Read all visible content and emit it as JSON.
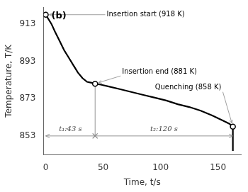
{
  "chart_data": {
    "type": "line",
    "x": [
      0,
      2,
      5,
      8,
      12,
      16,
      20,
      24,
      28,
      32,
      36,
      40,
      43,
      48,
      55,
      65,
      75,
      85,
      95,
      105,
      115,
      125,
      135,
      145,
      155,
      160,
      163,
      163
    ],
    "values": [
      918,
      916,
      913,
      909,
      904,
      899,
      895,
      891,
      887,
      884,
      882,
      881.5,
      881,
      880.5,
      879.5,
      878,
      876.5,
      875,
      873.5,
      872,
      870,
      868.5,
      866.5,
      864,
      861,
      859.5,
      858,
      845
    ],
    "color": "#000000",
    "xlabel": "Time, t/s",
    "ylabel": "Temperature, T/K",
    "panel_label": "(b)",
    "xlim": [
      -2,
      170
    ],
    "ylim": [
      843,
      922
    ],
    "xticks": [
      0,
      50,
      100,
      150
    ],
    "yticks": [
      853,
      873,
      893,
      913
    ],
    "grid": false,
    "markers": [
      {
        "x": 0,
        "y": 918,
        "label": "Insertion start (918 K)"
      },
      {
        "x": 43,
        "y": 881,
        "label": "Insertion end (881 K)"
      },
      {
        "x": 163,
        "y": 858,
        "label": "Quenching (858 K)"
      }
    ],
    "reference": {
      "y": 853,
      "x_start": 0,
      "x_end": 163,
      "x_mark": 43,
      "y_mark_end": 881,
      "color": "#888888",
      "labels": [
        "t₁:43 s",
        "t₂:120 s"
      ]
    }
  }
}
